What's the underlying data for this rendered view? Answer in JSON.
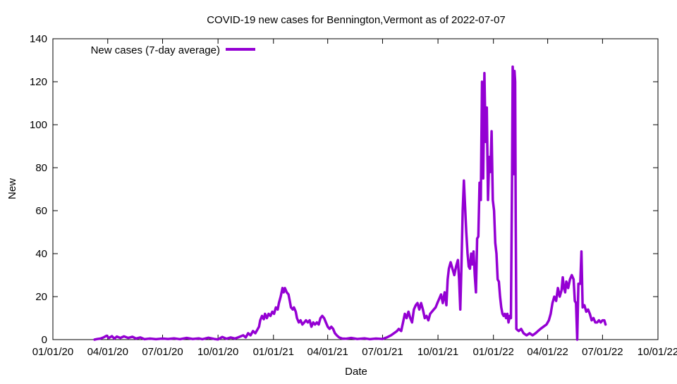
{
  "chart_data": {
    "type": "line",
    "title": "COVID-19 new cases for Bennington,Vermont as of 2022-07-07",
    "xlabel": "Date",
    "ylabel": "New",
    "x_ticks": [
      "01/01/20",
      "04/01/20",
      "07/01/20",
      "10/01/20",
      "01/01/21",
      "04/01/21",
      "07/01/21",
      "10/01/21",
      "01/01/22",
      "04/01/22",
      "07/01/22",
      "10/01/22"
    ],
    "xlim": [
      "2020-01-01",
      "2022-10-01"
    ],
    "ylim": [
      0,
      140
    ],
    "y_ticks": [
      0,
      20,
      40,
      60,
      80,
      100,
      120,
      140
    ],
    "grid": false,
    "legend_position": "top-left",
    "series": [
      {
        "name": "New cases (7-day average)",
        "color": "#9400d3",
        "points": [
          [
            "2020-03-10",
            0
          ],
          [
            "2020-03-15",
            0.3
          ],
          [
            "2020-03-20",
            0.5
          ],
          [
            "2020-03-25",
            1
          ],
          [
            "2020-03-30",
            1.8
          ],
          [
            "2020-04-03",
            0.8
          ],
          [
            "2020-04-08",
            1.6
          ],
          [
            "2020-04-12",
            0.5
          ],
          [
            "2020-04-16",
            1.4
          ],
          [
            "2020-04-22",
            0.8
          ],
          [
            "2020-04-28",
            1.5
          ],
          [
            "2020-05-05",
            0.8
          ],
          [
            "2020-05-12",
            1.3
          ],
          [
            "2020-05-18",
            0.5
          ],
          [
            "2020-05-25",
            1
          ],
          [
            "2020-06-01",
            0.2
          ],
          [
            "2020-06-10",
            0.5
          ],
          [
            "2020-06-20",
            0.2
          ],
          [
            "2020-07-01",
            0.5
          ],
          [
            "2020-07-10",
            0.3
          ],
          [
            "2020-07-20",
            0.6
          ],
          [
            "2020-07-30",
            0.2
          ],
          [
            "2020-08-10",
            0.8
          ],
          [
            "2020-08-20",
            0.3
          ],
          [
            "2020-08-30",
            0.6
          ],
          [
            "2020-09-05",
            0.2
          ],
          [
            "2020-09-15",
            0.9
          ],
          [
            "2020-09-25",
            0.3
          ],
          [
            "2020-10-01",
            0.1
          ],
          [
            "2020-10-08",
            1.2
          ],
          [
            "2020-10-15",
            0.4
          ],
          [
            "2020-10-22",
            1
          ],
          [
            "2020-10-29",
            0.5
          ],
          [
            "2020-11-05",
            1.2
          ],
          [
            "2020-11-12",
            2
          ],
          [
            "2020-11-16",
            1
          ],
          [
            "2020-11-20",
            3
          ],
          [
            "2020-11-24",
            2
          ],
          [
            "2020-11-28",
            4
          ],
          [
            "2020-12-02",
            3
          ],
          [
            "2020-12-05",
            4.5
          ],
          [
            "2020-12-08",
            6
          ],
          [
            "2020-12-10",
            9
          ],
          [
            "2020-12-13",
            11
          ],
          [
            "2020-12-16",
            9.5
          ],
          [
            "2020-12-18",
            12
          ],
          [
            "2020-12-21",
            10
          ],
          [
            "2020-12-24",
            12
          ],
          [
            "2020-12-27",
            11
          ],
          [
            "2020-12-30",
            13
          ],
          [
            "2021-01-02",
            12
          ],
          [
            "2021-01-05",
            15
          ],
          [
            "2021-01-08",
            14
          ],
          [
            "2021-01-10",
            17
          ],
          [
            "2021-01-13",
            20
          ],
          [
            "2021-01-16",
            24
          ],
          [
            "2021-01-18",
            22
          ],
          [
            "2021-01-20",
            24
          ],
          [
            "2021-01-23",
            22
          ],
          [
            "2021-01-26",
            21
          ],
          [
            "2021-01-28",
            18
          ],
          [
            "2021-01-30",
            15
          ],
          [
            "2021-02-02",
            14
          ],
          [
            "2021-02-04",
            15
          ],
          [
            "2021-02-07",
            13
          ],
          [
            "2021-02-09",
            10
          ],
          [
            "2021-02-12",
            8
          ],
          [
            "2021-02-15",
            9
          ],
          [
            "2021-02-18",
            7
          ],
          [
            "2021-02-21",
            8
          ],
          [
            "2021-02-24",
            9
          ],
          [
            "2021-02-27",
            8
          ],
          [
            "2021-03-02",
            9
          ],
          [
            "2021-03-05",
            6
          ],
          [
            "2021-03-08",
            8
          ],
          [
            "2021-03-11",
            7
          ],
          [
            "2021-03-14",
            8
          ],
          [
            "2021-03-17",
            7
          ],
          [
            "2021-03-20",
            10
          ],
          [
            "2021-03-23",
            11
          ],
          [
            "2021-03-26",
            10
          ],
          [
            "2021-03-29",
            8
          ],
          [
            "2021-04-01",
            6
          ],
          [
            "2021-04-04",
            5
          ],
          [
            "2021-04-07",
            6
          ],
          [
            "2021-04-10",
            5
          ],
          [
            "2021-04-13",
            3
          ],
          [
            "2021-04-16",
            2
          ],
          [
            "2021-04-20",
            1
          ],
          [
            "2021-04-25",
            0.5
          ],
          [
            "2021-05-01",
            0.4
          ],
          [
            "2021-05-10",
            0.8
          ],
          [
            "2021-05-20",
            0.3
          ],
          [
            "2021-06-01",
            0.6
          ],
          [
            "2021-06-10",
            0.2
          ],
          [
            "2021-06-20",
            0.5
          ],
          [
            "2021-07-01",
            0.3
          ],
          [
            "2021-07-08",
            1
          ],
          [
            "2021-07-15",
            2
          ],
          [
            "2021-07-20",
            3
          ],
          [
            "2021-07-25",
            4
          ],
          [
            "2021-07-28",
            5
          ],
          [
            "2021-08-01",
            4
          ],
          [
            "2021-08-04",
            8
          ],
          [
            "2021-08-07",
            12
          ],
          [
            "2021-08-10",
            10
          ],
          [
            "2021-08-13",
            13
          ],
          [
            "2021-08-16",
            10
          ],
          [
            "2021-08-19",
            8
          ],
          [
            "2021-08-22",
            14
          ],
          [
            "2021-08-25",
            16
          ],
          [
            "2021-08-28",
            17
          ],
          [
            "2021-08-31",
            14
          ],
          [
            "2021-09-03",
            17
          ],
          [
            "2021-09-06",
            14
          ],
          [
            "2021-09-09",
            10
          ],
          [
            "2021-09-12",
            11
          ],
          [
            "2021-09-15",
            9
          ],
          [
            "2021-09-18",
            12
          ],
          [
            "2021-09-21",
            13
          ],
          [
            "2021-09-24",
            14
          ],
          [
            "2021-09-27",
            15
          ],
          [
            "2021-09-30",
            17
          ],
          [
            "2021-10-03",
            19
          ],
          [
            "2021-10-06",
            21
          ],
          [
            "2021-10-09",
            17
          ],
          [
            "2021-10-12",
            22
          ],
          [
            "2021-10-15",
            16
          ],
          [
            "2021-10-17",
            28
          ],
          [
            "2021-10-19",
            33
          ],
          [
            "2021-10-22",
            36
          ],
          [
            "2021-10-25",
            33
          ],
          [
            "2021-10-28",
            30
          ],
          [
            "2021-10-31",
            34
          ],
          [
            "2021-11-03",
            37
          ],
          [
            "2021-11-05",
            28
          ],
          [
            "2021-11-07",
            14
          ],
          [
            "2021-11-09",
            35
          ],
          [
            "2021-11-11",
            60
          ],
          [
            "2021-11-13",
            74
          ],
          [
            "2021-11-15",
            62
          ],
          [
            "2021-11-17",
            50
          ],
          [
            "2021-11-19",
            40
          ],
          [
            "2021-11-21",
            34
          ],
          [
            "2021-11-23",
            33
          ],
          [
            "2021-11-25",
            40
          ],
          [
            "2021-11-27",
            35
          ],
          [
            "2021-11-29",
            41
          ],
          [
            "2021-12-01",
            30
          ],
          [
            "2021-12-03",
            22
          ],
          [
            "2021-12-05",
            47
          ],
          [
            "2021-12-07",
            48
          ],
          [
            "2021-12-09",
            73
          ],
          [
            "2021-12-11",
            65
          ],
          [
            "2021-12-13",
            120
          ],
          [
            "2021-12-15",
            75
          ],
          [
            "2021-12-17",
            124
          ],
          [
            "2021-12-19",
            92
          ],
          [
            "2021-12-21",
            108
          ],
          [
            "2021-12-23",
            65
          ],
          [
            "2021-12-25",
            85
          ],
          [
            "2021-12-27",
            78
          ],
          [
            "2021-12-29",
            97
          ],
          [
            "2021-12-31",
            65
          ],
          [
            "2022-01-02",
            60
          ],
          [
            "2022-01-04",
            45
          ],
          [
            "2022-01-06",
            40
          ],
          [
            "2022-01-08",
            28
          ],
          [
            "2022-01-10",
            27
          ],
          [
            "2022-01-12",
            20
          ],
          [
            "2022-01-14",
            15
          ],
          [
            "2022-01-16",
            12
          ],
          [
            "2022-01-18",
            11
          ],
          [
            "2022-01-20",
            12
          ],
          [
            "2022-01-22",
            10
          ],
          [
            "2022-01-24",
            12
          ],
          [
            "2022-01-26",
            8
          ],
          [
            "2022-01-28",
            11
          ],
          [
            "2022-01-30",
            10
          ],
          [
            "2022-02-01",
            80
          ],
          [
            "2022-02-02",
            127
          ],
          [
            "2022-02-03",
            120
          ],
          [
            "2022-02-04",
            77
          ],
          [
            "2022-02-05",
            125
          ],
          [
            "2022-02-06",
            120
          ],
          [
            "2022-02-07",
            56
          ],
          [
            "2022-02-08",
            5
          ],
          [
            "2022-02-12",
            4
          ],
          [
            "2022-02-16",
            5
          ],
          [
            "2022-02-20",
            3
          ],
          [
            "2022-02-25",
            2
          ],
          [
            "2022-03-02",
            3
          ],
          [
            "2022-03-07",
            2
          ],
          [
            "2022-03-12",
            3
          ],
          [
            "2022-03-16",
            4
          ],
          [
            "2022-03-20",
            5
          ],
          [
            "2022-03-25",
            6
          ],
          [
            "2022-03-30",
            7
          ],
          [
            "2022-04-03",
            9
          ],
          [
            "2022-04-06",
            12
          ],
          [
            "2022-04-09",
            17
          ],
          [
            "2022-04-12",
            20
          ],
          [
            "2022-04-15",
            18
          ],
          [
            "2022-04-18",
            24
          ],
          [
            "2022-04-21",
            20
          ],
          [
            "2022-04-24",
            23
          ],
          [
            "2022-04-26",
            29
          ],
          [
            "2022-04-28",
            24
          ],
          [
            "2022-04-30",
            22
          ],
          [
            "2022-05-02",
            27
          ],
          [
            "2022-05-05",
            24
          ],
          [
            "2022-05-08",
            28
          ],
          [
            "2022-05-11",
            30
          ],
          [
            "2022-05-14",
            28
          ],
          [
            "2022-05-16",
            18
          ],
          [
            "2022-05-18",
            17
          ],
          [
            "2022-05-20",
            0
          ],
          [
            "2022-05-22",
            26
          ],
          [
            "2022-05-25",
            26
          ],
          [
            "2022-05-27",
            41
          ],
          [
            "2022-05-29",
            15
          ],
          [
            "2022-06-01",
            16
          ],
          [
            "2022-06-04",
            13
          ],
          [
            "2022-06-07",
            14
          ],
          [
            "2022-06-10",
            12
          ],
          [
            "2022-06-13",
            9
          ],
          [
            "2022-06-16",
            10
          ],
          [
            "2022-06-19",
            8
          ],
          [
            "2022-06-22",
            8
          ],
          [
            "2022-06-25",
            9
          ],
          [
            "2022-06-28",
            8
          ],
          [
            "2022-07-01",
            9
          ],
          [
            "2022-07-04",
            9
          ],
          [
            "2022-07-06",
            7
          ]
        ]
      }
    ]
  }
}
